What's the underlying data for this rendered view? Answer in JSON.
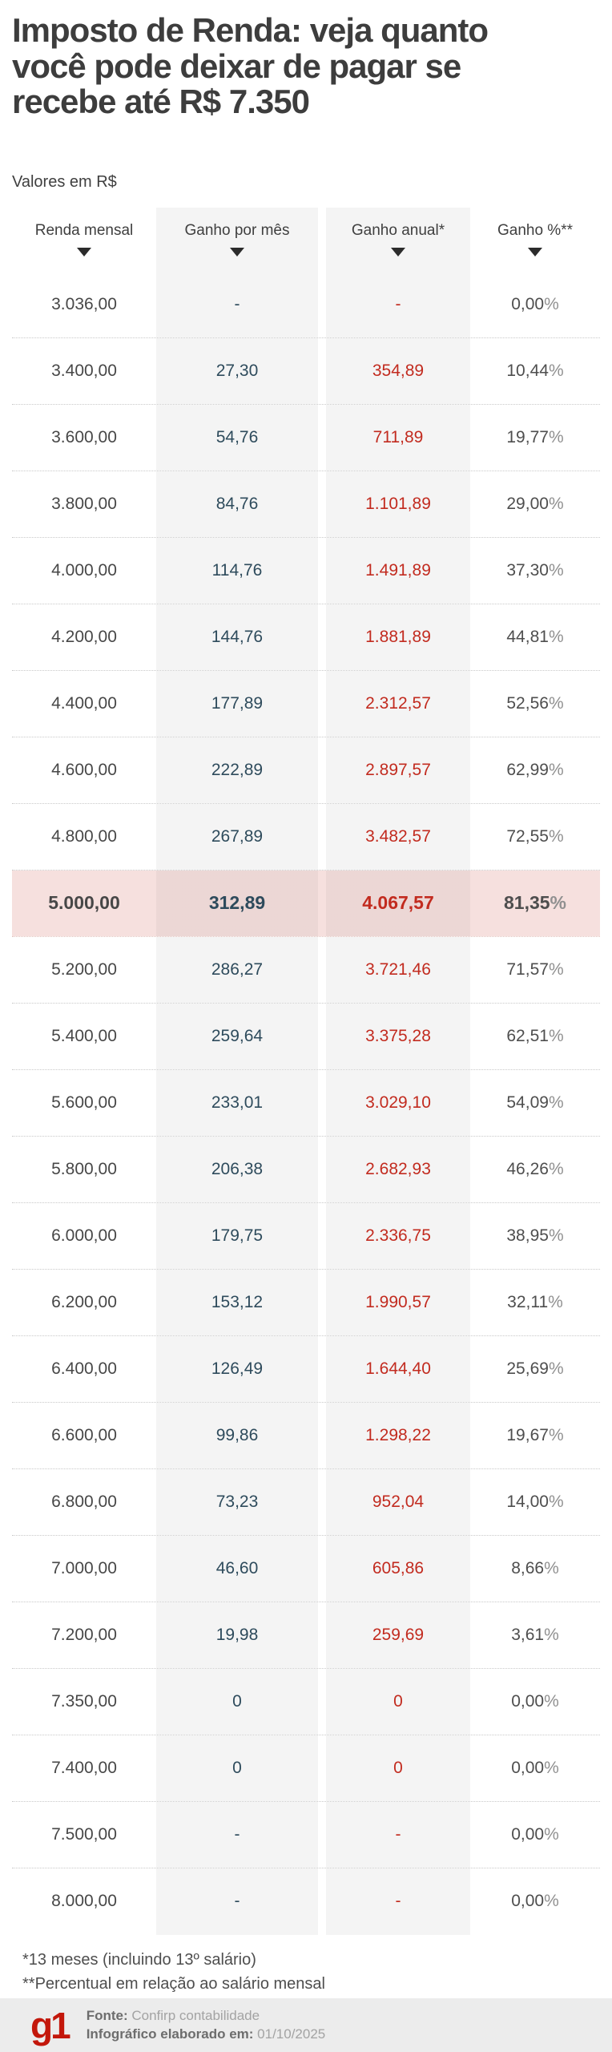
{
  "header": {
    "title": "Imposto de Renda: veja quanto você pode deixar de pagar se recebe até R$ 7.350",
    "subtitle": "Valores em R$"
  },
  "chart_data": {
    "type": "table",
    "title": "Imposto de Renda: veja quanto você pode deixar de pagar se recebe até R$ 7.350",
    "unit_note": "Valores em R$",
    "columns": [
      "Renda mensal",
      "Ganho por mês",
      "Ganho anual*",
      "Ganho %**"
    ],
    "percent_suffix": "%",
    "colors": {
      "ganho_mes_text": "#2e4b5c",
      "ganho_anual_text": "#c22b1f",
      "column_stripe_bg": "#f4f4f4",
      "highlight_row_bg": "#f4dad7",
      "title_text": "#3d3d3d",
      "g1_logo_red": "#c3170b"
    },
    "rows": [
      {
        "renda": "3.036,00",
        "mes": "-",
        "anual": "-",
        "pct": "0,00",
        "highlight": false
      },
      {
        "renda": "3.400,00",
        "mes": "27,30",
        "anual": "354,89",
        "pct": "10,44",
        "highlight": false
      },
      {
        "renda": "3.600,00",
        "mes": "54,76",
        "anual": "711,89",
        "pct": "19,77",
        "highlight": false
      },
      {
        "renda": "3.800,00",
        "mes": "84,76",
        "anual": "1.101,89",
        "pct": "29,00",
        "highlight": false
      },
      {
        "renda": "4.000,00",
        "mes": "114,76",
        "anual": "1.491,89",
        "pct": "37,30",
        "highlight": false
      },
      {
        "renda": "4.200,00",
        "mes": "144,76",
        "anual": "1.881,89",
        "pct": "44,81",
        "highlight": false
      },
      {
        "renda": "4.400,00",
        "mes": "177,89",
        "anual": "2.312,57",
        "pct": "52,56",
        "highlight": false
      },
      {
        "renda": "4.600,00",
        "mes": "222,89",
        "anual": "2.897,57",
        "pct": "62,99",
        "highlight": false
      },
      {
        "renda": "4.800,00",
        "mes": "267,89",
        "anual": "3.482,57",
        "pct": "72,55",
        "highlight": false
      },
      {
        "renda": "5.000,00",
        "mes": "312,89",
        "anual": "4.067,57",
        "pct": "81,35",
        "highlight": true
      },
      {
        "renda": "5.200,00",
        "mes": "286,27",
        "anual": "3.721,46",
        "pct": "71,57",
        "highlight": false
      },
      {
        "renda": "5.400,00",
        "mes": "259,64",
        "anual": "3.375,28",
        "pct": "62,51",
        "highlight": false
      },
      {
        "renda": "5.600,00",
        "mes": "233,01",
        "anual": "3.029,10",
        "pct": "54,09",
        "highlight": false
      },
      {
        "renda": "5.800,00",
        "mes": "206,38",
        "anual": "2.682,93",
        "pct": "46,26",
        "highlight": false
      },
      {
        "renda": "6.000,00",
        "mes": "179,75",
        "anual": "2.336,75",
        "pct": "38,95",
        "highlight": false
      },
      {
        "renda": "6.200,00",
        "mes": "153,12",
        "anual": "1.990,57",
        "pct": "32,11",
        "highlight": false
      },
      {
        "renda": "6.400,00",
        "mes": "126,49",
        "anual": "1.644,40",
        "pct": "25,69",
        "highlight": false
      },
      {
        "renda": "6.600,00",
        "mes": "99,86",
        "anual": "1.298,22",
        "pct": "19,67",
        "highlight": false
      },
      {
        "renda": "6.800,00",
        "mes": "73,23",
        "anual": "952,04",
        "pct": "14,00",
        "highlight": false
      },
      {
        "renda": "7.000,00",
        "mes": "46,60",
        "anual": "605,86",
        "pct": "8,66",
        "highlight": false
      },
      {
        "renda": "7.200,00",
        "mes": "19,98",
        "anual": "259,69",
        "pct": "3,61",
        "highlight": false
      },
      {
        "renda": "7.350,00",
        "mes": "0",
        "anual": "0",
        "pct": "0,00",
        "highlight": false
      },
      {
        "renda": "7.400,00",
        "mes": "0",
        "anual": "0",
        "pct": "0,00",
        "highlight": false
      },
      {
        "renda": "7.500,00",
        "mes": "-",
        "anual": "-",
        "pct": "0,00",
        "highlight": false
      },
      {
        "renda": "8.000,00",
        "mes": "-",
        "anual": "-",
        "pct": "0,00",
        "highlight": false
      }
    ]
  },
  "footnotes": [
    "*13 meses (incluindo 13º salário)",
    "**Percentual em relação ao salário mensal"
  ],
  "footer": {
    "logo_text": "g1",
    "source_label": "Fonte:",
    "source_value": "Confirp contabilidade",
    "date_label": "Infográfico elaborado em:",
    "date_value": "01/10/2025"
  }
}
